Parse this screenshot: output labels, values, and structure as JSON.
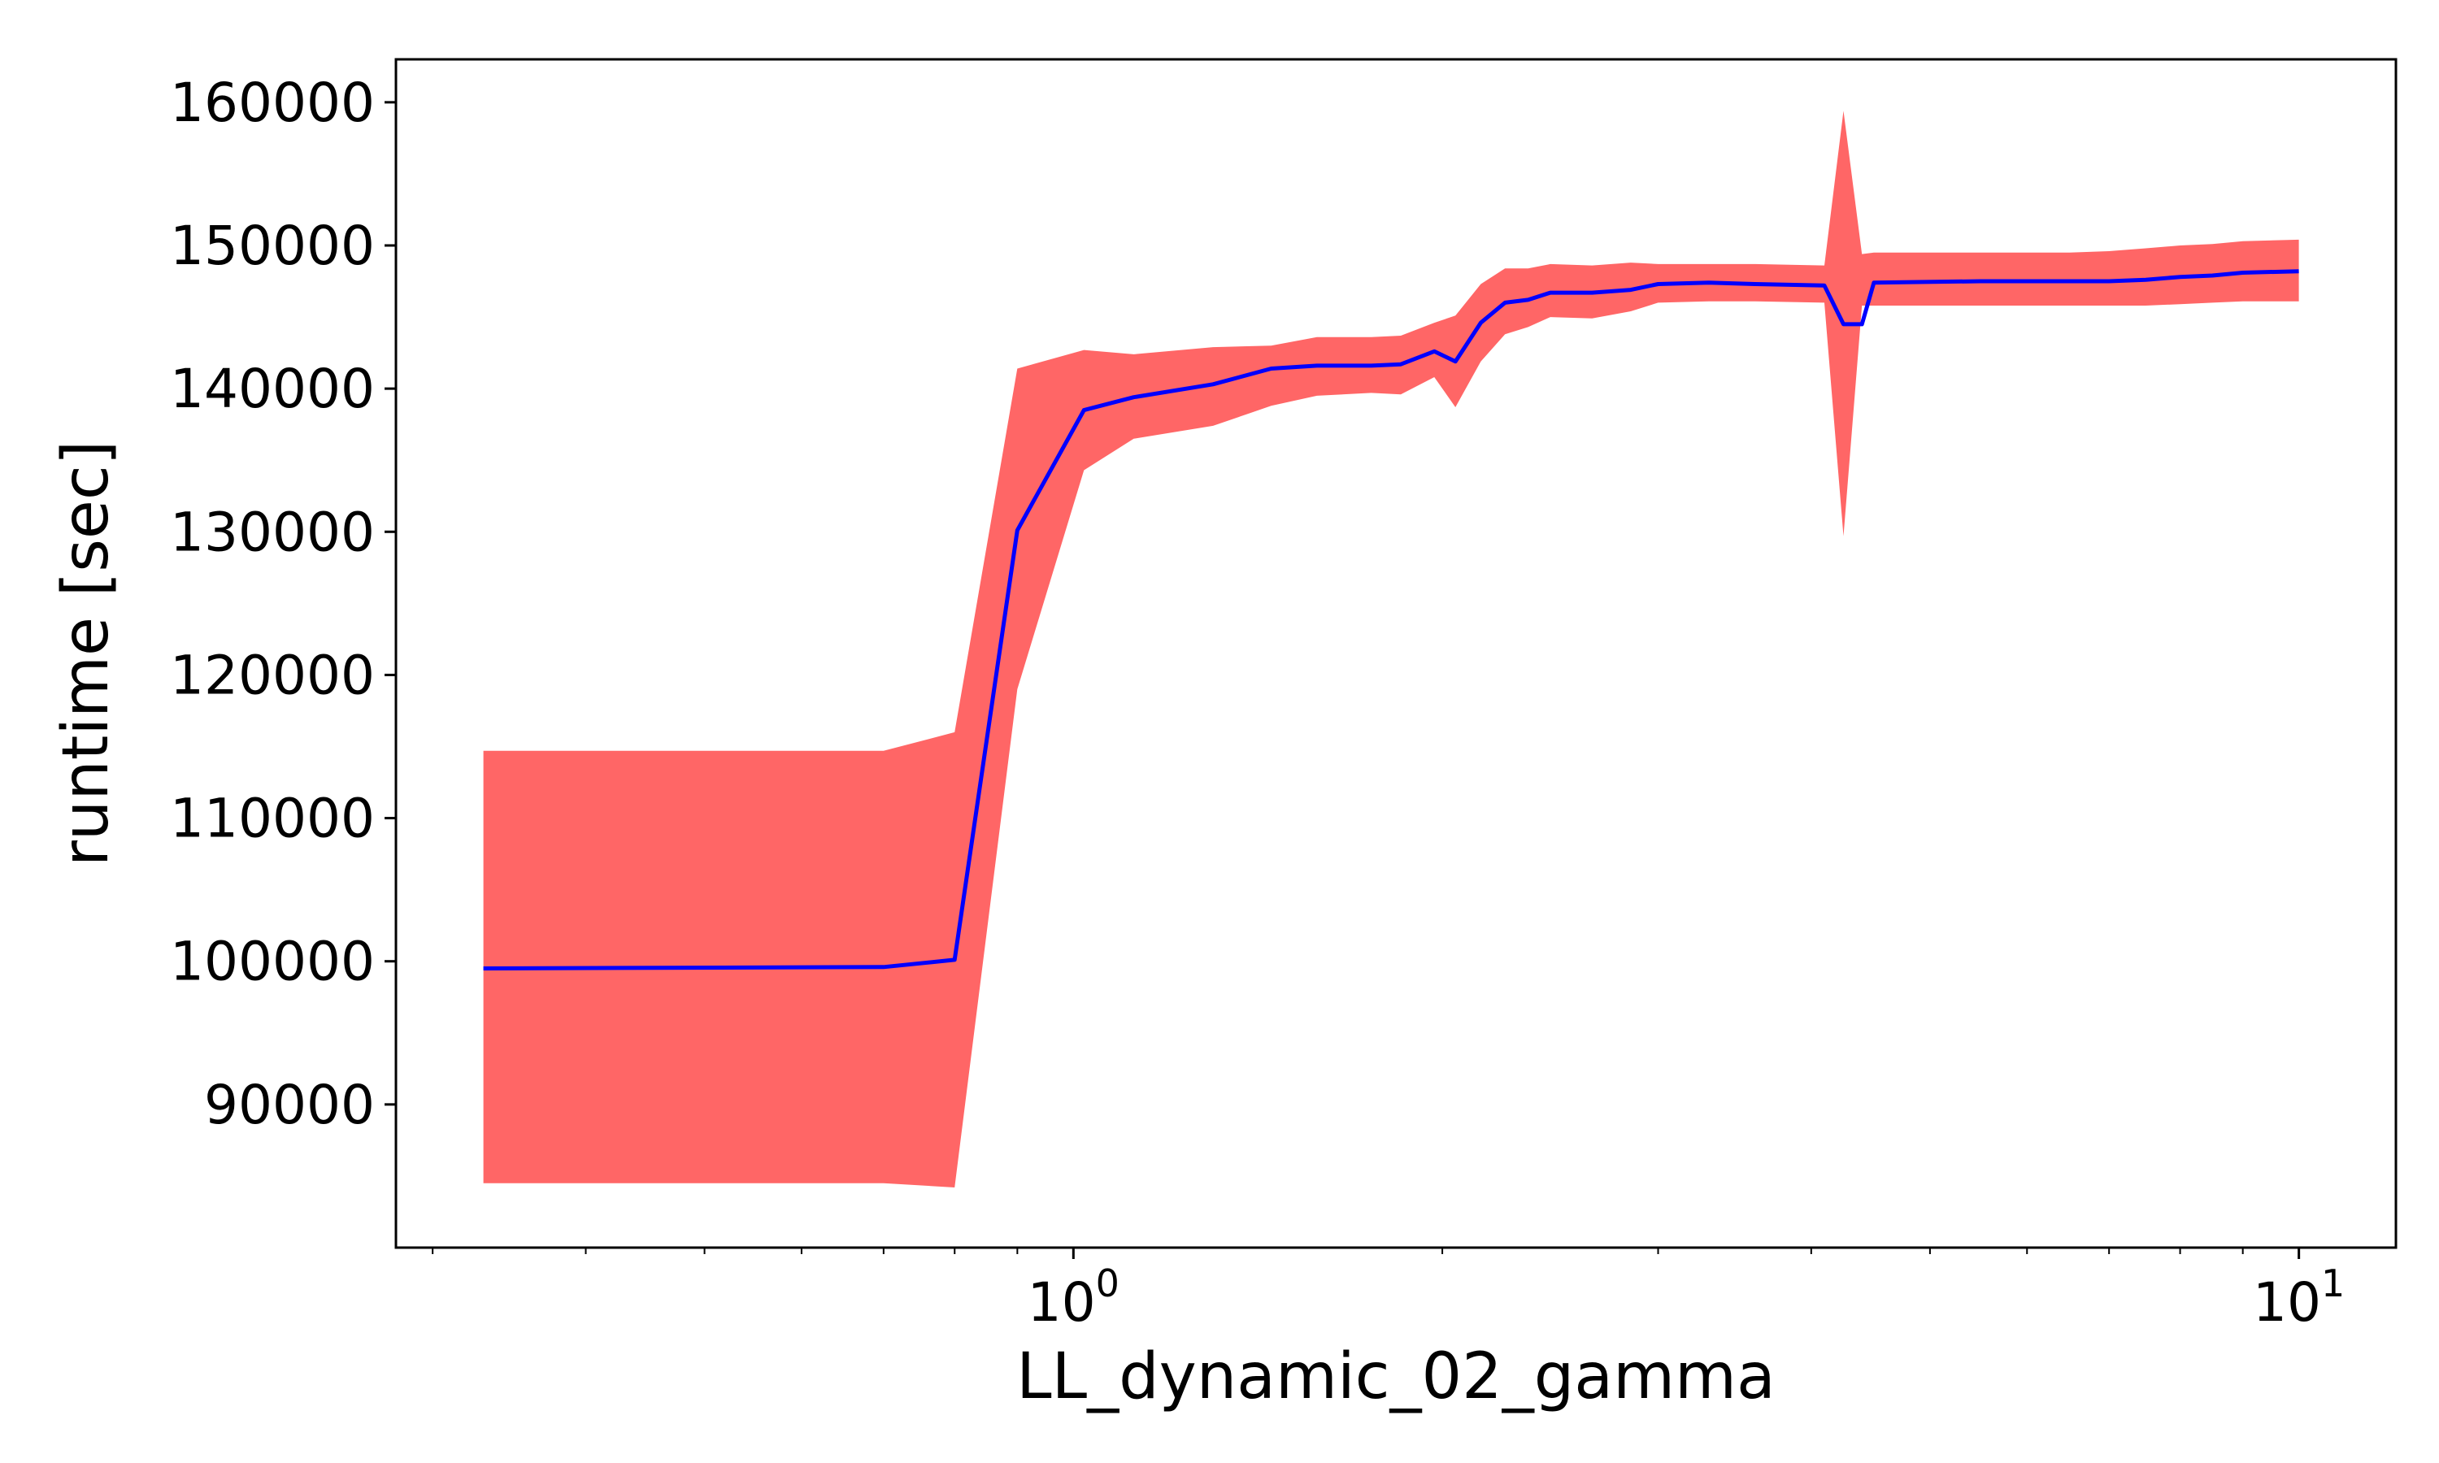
{
  "chart_data": {
    "type": "area",
    "title": "",
    "xlabel": "LL_dynamic_02_gamma",
    "ylabel": "runtime [sec]",
    "xscale": "log",
    "xlim": [
      0.28,
      12.0
    ],
    "ylim": [
      80000,
      163000
    ],
    "grid": false,
    "legend": "none",
    "x_ticks": [
      {
        "value": 1,
        "base": "10",
        "exp": "0"
      },
      {
        "value": 10,
        "base": "10",
        "exp": "1"
      }
    ],
    "x_minor_ticks": [
      0.3,
      0.4,
      0.5,
      0.6,
      0.7,
      0.8,
      0.9,
      2,
      3,
      4,
      5,
      6,
      7,
      8,
      9
    ],
    "y_ticks": [
      {
        "value": 90000,
        "label": "90000"
      },
      {
        "value": 100000,
        "label": "100000"
      },
      {
        "value": 110000,
        "label": "110000"
      },
      {
        "value": 120000,
        "label": "120000"
      },
      {
        "value": 130000,
        "label": "130000"
      },
      {
        "value": 140000,
        "label": "140000"
      },
      {
        "value": 150000,
        "label": "150000"
      },
      {
        "value": 160000,
        "label": "160000"
      }
    ],
    "colors": {
      "mean": "#0000ff",
      "band": "#ff6666"
    },
    "x": [
      0.33,
      0.7,
      0.8,
      0.9,
      1.02,
      1.12,
      1.3,
      1.45,
      1.58,
      1.75,
      1.85,
      1.97,
      2.05,
      2.15,
      2.25,
      2.35,
      2.45,
      2.65,
      2.85,
      3.0,
      3.3,
      3.6,
      4.1,
      4.25,
      4.4,
      4.5,
      5.5,
      6.5,
      7.0,
      7.5,
      8.0,
      8.5,
      9.0,
      10.0
    ],
    "mean": [
      99500,
      99600,
      100100,
      130100,
      138500,
      139400,
      140300,
      141400,
      141600,
      141600,
      141700,
      142600,
      141900,
      144600,
      146000,
      146200,
      146700,
      146700,
      146900,
      147300,
      147400,
      147300,
      147200,
      144500,
      144500,
      147400,
      147500,
      147500,
      147500,
      147600,
      147800,
      147900,
      148100,
      148200
    ],
    "lower": [
      84500,
      84500,
      84200,
      119000,
      134300,
      136500,
      137400,
      138800,
      139500,
      139700,
      139600,
      140800,
      138700,
      141900,
      143800,
      144300,
      145000,
      144900,
      145400,
      146000,
      146100,
      146100,
      146000,
      129700,
      145800,
      145800,
      145800,
      145800,
      145800,
      145800,
      145900,
      146000,
      146100,
      146100
    ],
    "upper": [
      114700,
      114700,
      116000,
      141400,
      142700,
      142400,
      142900,
      143000,
      143600,
      143600,
      143700,
      144600,
      145100,
      147300,
      148400,
      148400,
      148700,
      148600,
      148800,
      148700,
      148700,
      148700,
      148600,
      159400,
      149400,
      149500,
      149500,
      149500,
      149600,
      149800,
      150000,
      150100,
      150300,
      150400
    ]
  }
}
